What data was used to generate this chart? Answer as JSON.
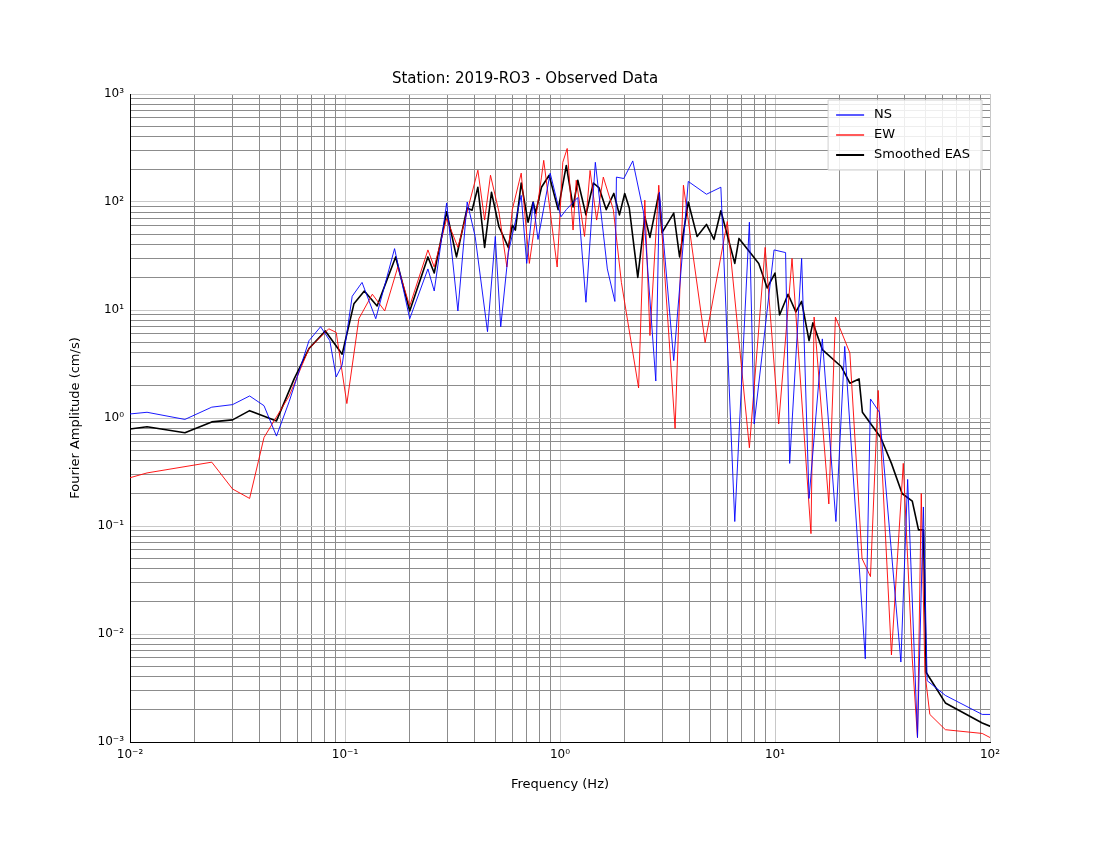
{
  "chart_data": {
    "type": "line",
    "title": "Station: 2019-RO3 - Observed Data",
    "xlabel": "Frequency (Hz)",
    "ylabel": "Fourier Amplitude (cm/s)",
    "log": "xy",
    "grid": true,
    "legend": "top right",
    "xlim": [
      0.01,
      100
    ],
    "ylim": [
      0.001,
      1000
    ],
    "xticks": [
      {
        "value": 0.01,
        "label": "10⁻²"
      },
      {
        "value": 0.02,
        "label": null
      },
      {
        "value": 0.03,
        "label": null
      },
      {
        "value": 0.04,
        "label": null
      },
      {
        "value": 0.05,
        "label": null
      },
      {
        "value": 0.06,
        "label": null
      },
      {
        "value": 0.07,
        "label": null
      },
      {
        "value": 0.08,
        "label": null
      },
      {
        "value": 0.09,
        "label": null
      },
      {
        "value": 0.1,
        "label": "10⁻¹"
      },
      {
        "value": 0.2,
        "label": null
      },
      {
        "value": 0.3,
        "label": null
      },
      {
        "value": 0.4,
        "label": null
      },
      {
        "value": 0.5,
        "label": null
      },
      {
        "value": 0.6,
        "label": null
      },
      {
        "value": 0.7,
        "label": null
      },
      {
        "value": 0.8,
        "label": null
      },
      {
        "value": 0.9,
        "label": null
      },
      {
        "value": 1,
        "label": "10⁰"
      },
      {
        "value": 2,
        "label": null
      },
      {
        "value": 3,
        "label": null
      },
      {
        "value": 4,
        "label": null
      },
      {
        "value": 5,
        "label": null
      },
      {
        "value": 6,
        "label": null
      },
      {
        "value": 7,
        "label": null
      },
      {
        "value": 8,
        "label": null
      },
      {
        "value": 9,
        "label": null
      },
      {
        "value": 10,
        "label": "10¹"
      },
      {
        "value": 20,
        "label": null
      },
      {
        "value": 30,
        "label": null
      },
      {
        "value": 40,
        "label": null
      },
      {
        "value": 50,
        "label": null
      },
      {
        "value": 60,
        "label": null
      },
      {
        "value": 70,
        "label": null
      },
      {
        "value": 80,
        "label": null
      },
      {
        "value": 90,
        "label": null
      },
      {
        "value": 100,
        "label": "10²"
      }
    ],
    "yticks": [
      {
        "value": 0.001,
        "label": "10⁻³"
      },
      {
        "value": 0.002,
        "label": null
      },
      {
        "value": 0.003,
        "label": null
      },
      {
        "value": 0.004,
        "label": null
      },
      {
        "value": 0.005,
        "label": null
      },
      {
        "value": 0.006,
        "label": null
      },
      {
        "value": 0.007,
        "label": null
      },
      {
        "value": 0.008,
        "label": null
      },
      {
        "value": 0.009,
        "label": null
      },
      {
        "value": 0.01,
        "label": "10⁻²"
      },
      {
        "value": 0.02,
        "label": null
      },
      {
        "value": 0.03,
        "label": null
      },
      {
        "value": 0.04,
        "label": null
      },
      {
        "value": 0.05,
        "label": null
      },
      {
        "value": 0.06,
        "label": null
      },
      {
        "value": 0.07,
        "label": null
      },
      {
        "value": 0.08,
        "label": null
      },
      {
        "value": 0.09,
        "label": null
      },
      {
        "value": 0.1,
        "label": "10⁻¹"
      },
      {
        "value": 0.2,
        "label": null
      },
      {
        "value": 0.3,
        "label": null
      },
      {
        "value": 0.4,
        "label": null
      },
      {
        "value": 0.5,
        "label": null
      },
      {
        "value": 0.6,
        "label": null
      },
      {
        "value": 0.7,
        "label": null
      },
      {
        "value": 0.8,
        "label": null
      },
      {
        "value": 0.9,
        "label": null
      },
      {
        "value": 1,
        "label": "10⁰"
      },
      {
        "value": 2,
        "label": null
      },
      {
        "value": 3,
        "label": null
      },
      {
        "value": 4,
        "label": null
      },
      {
        "value": 5,
        "label": null
      },
      {
        "value": 6,
        "label": null
      },
      {
        "value": 7,
        "label": null
      },
      {
        "value": 8,
        "label": null
      },
      {
        "value": 9,
        "label": null
      },
      {
        "value": 10,
        "label": "10¹"
      },
      {
        "value": 20,
        "label": null
      },
      {
        "value": 30,
        "label": null
      },
      {
        "value": 40,
        "label": null
      },
      {
        "value": 50,
        "label": null
      },
      {
        "value": 60,
        "label": null
      },
      {
        "value": 70,
        "label": null
      },
      {
        "value": 80,
        "label": null
      },
      {
        "value": 90,
        "label": null
      },
      {
        "value": 100,
        "label": "10²"
      },
      {
        "value": 200,
        "label": null
      },
      {
        "value": 300,
        "label": null
      },
      {
        "value": 400,
        "label": null
      },
      {
        "value": 500,
        "label": null
      },
      {
        "value": 600,
        "label": null
      },
      {
        "value": 700,
        "label": null
      },
      {
        "value": 800,
        "label": null
      },
      {
        "value": 900,
        "label": null
      },
      {
        "value": 1000,
        "label": "10³"
      }
    ],
    "series": [
      {
        "name": "NS",
        "color": "#0000ff",
        "x": [
          0.01,
          0.012,
          0.018,
          0.024,
          0.03,
          0.036,
          0.042,
          0.048,
          0.055,
          0.068,
          0.077,
          0.085,
          0.091,
          0.097,
          0.108,
          0.12,
          0.139,
          0.17,
          0.2,
          0.243,
          0.26,
          0.297,
          0.335,
          0.37,
          0.403,
          0.46,
          0.5,
          0.53,
          0.575,
          0.66,
          0.7,
          0.75,
          0.79,
          0.9,
          1.01,
          1.07,
          1.21,
          1.32,
          1.46,
          1.66,
          1.8,
          1.83,
          1.98,
          2.18,
          2.45,
          2.79,
          2.9,
          3.38,
          3.95,
          4.8,
          5.6,
          6.5,
          7.6,
          8.0,
          9.9,
          11.2,
          11.7,
          13.3,
          14.4,
          16.6,
          19.2,
          21.1,
          26.3,
          27.8,
          30.6,
          38.5,
          41.4,
          46,
          49,
          51,
          62,
          92,
          100
        ],
        "values": [
          1.09,
          1.13,
          0.97,
          1.26,
          1.33,
          1.6,
          1.3,
          0.68,
          1.42,
          5.2,
          7.0,
          5.2,
          2.4,
          3.1,
          13.4,
          18,
          8.3,
          37,
          8.3,
          24,
          15,
          98,
          9.8,
          100,
          48,
          6.3,
          48,
          7.0,
          34,
          115,
          27,
          100,
          45,
          185,
          73,
          85,
          110,
          11.8,
          233,
          24,
          12,
          170,
          165,
          240,
          79,
          2.2,
          123,
          3.4,
          155,
          118,
          137,
          0.11,
          65,
          0.88,
          36,
          34,
          0.38,
          30,
          0.18,
          5.4,
          0.11,
          4.6,
          0.0059,
          1.5,
          1.13,
          0.0055,
          0.27,
          0.0011,
          0.15,
          0.0037,
          0.0027,
          0.0018,
          0.0018
        ]
      },
      {
        "name": "EW",
        "color": "#ff0000",
        "x": [
          0.01,
          0.012,
          0.024,
          0.03,
          0.036,
          0.042,
          0.055,
          0.068,
          0.084,
          0.091,
          0.102,
          0.116,
          0.134,
          0.153,
          0.176,
          0.2,
          0.243,
          0.26,
          0.297,
          0.335,
          0.415,
          0.446,
          0.475,
          0.52,
          0.566,
          0.6,
          0.66,
          0.72,
          0.82,
          0.84,
          0.97,
          1.03,
          1.08,
          1.15,
          1.19,
          1.3,
          1.38,
          1.48,
          1.59,
          1.77,
          1.93,
          2.32,
          2.48,
          2.62,
          2.88,
          3.43,
          3.75,
          4.73,
          6.0,
          7.6,
          9.0,
          10.4,
          12,
          14.7,
          15.2,
          17.8,
          19.1,
          22.3,
          25.4,
          27.8,
          30.2,
          34.8,
          39.5,
          43.5,
          46,
          47.9,
          49.8,
          52.5,
          62,
          92,
          100
        ],
        "values": [
          0.28,
          0.31,
          0.39,
          0.22,
          0.18,
          0.66,
          1.6,
          4.4,
          6.7,
          6.2,
          1.36,
          8.3,
          14,
          9.8,
          25,
          10.9,
          36,
          25,
          70,
          38,
          197,
          68,
          177,
          81,
          25,
          85,
          185,
          27,
          170,
          243,
          25,
          233,
          313,
          55,
          159,
          48,
          196,
          68,
          170,
          85,
          18,
          1.9,
          104,
          5.8,
          143,
          0.8,
          143,
          5,
          66,
          0.53,
          38,
          0.88,
          30,
          0.085,
          8.6,
          0.16,
          8.6,
          4.0,
          0.05,
          0.034,
          1.8,
          0.0064,
          0.38,
          0.0059,
          0.0011,
          0.2,
          0.0044,
          0.0018,
          0.0013,
          0.0012,
          0.0011
        ]
      },
      {
        "name": "Smoothed EAS",
        "color": "#000000",
        "x": [
          0.01,
          0.012,
          0.018,
          0.024,
          0.03,
          0.036,
          0.048,
          0.058,
          0.068,
          0.081,
          0.097,
          0.11,
          0.123,
          0.141,
          0.172,
          0.2,
          0.243,
          0.26,
          0.297,
          0.33,
          0.37,
          0.39,
          0.415,
          0.446,
          0.48,
          0.52,
          0.575,
          0.6,
          0.62,
          0.66,
          0.71,
          0.75,
          0.77,
          0.82,
          0.89,
          0.98,
          1.07,
          1.15,
          1.21,
          1.32,
          1.43,
          1.52,
          1.64,
          1.78,
          1.89,
          2.0,
          2.1,
          2.3,
          2.48,
          2.62,
          2.88,
          2.98,
          3.38,
          3.6,
          3.95,
          4.34,
          4.8,
          5.2,
          5.6,
          6.5,
          6.8,
          8.4,
          9.2,
          10,
          10.5,
          11.5,
          12.5,
          13.3,
          14.4,
          15,
          16.6,
          20.3,
          22.3,
          24.6,
          25.5,
          31,
          34.8,
          39,
          43.5,
          46.5,
          49,
          50.5,
          62,
          92,
          100
        ],
        "values": [
          0.79,
          0.83,
          0.73,
          0.92,
          0.96,
          1.17,
          0.94,
          2.3,
          4.4,
          6.4,
          3.9,
          11.4,
          15,
          10.9,
          31,
          9.8,
          31,
          22,
          81,
          31,
          88,
          84,
          137,
          38,
          123,
          59,
          38,
          61,
          55,
          150,
          65,
          100,
          79,
          137,
          177,
          85,
          218,
          90,
          159,
          76,
          150,
          135,
          85,
          120,
          76,
          120,
          88,
          20,
          73,
          47,
          120,
          52,
          79,
          31,
          100,
          48,
          62,
          45,
          83,
          27,
          46,
          27,
          16,
          22,
          9,
          14,
          9.6,
          12,
          5.2,
          7.6,
          4.3,
          3.0,
          2.1,
          2.3,
          1.13,
          0.66,
          0.38,
          0.2,
          0.17,
          0.092,
          0.092,
          0.0044,
          0.0023,
          0.0015,
          0.0014
        ]
      }
    ]
  }
}
